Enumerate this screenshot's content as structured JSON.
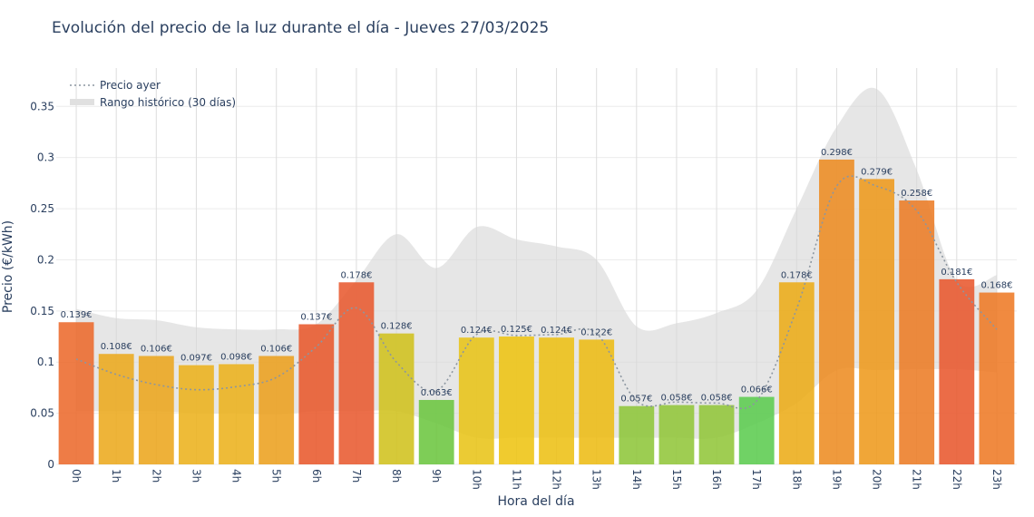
{
  "chart_data": {
    "type": "bar",
    "title": "Evolución del precio de la luz durante el día - Jueves 27/03/2025",
    "xlabel": "Hora del día",
    "ylabel": "Precio (€/kWh)",
    "ylim": [
      0,
      0.39
    ],
    "yticks": [
      0,
      0.05,
      0.1,
      0.15,
      0.2,
      0.25,
      0.3,
      0.35
    ],
    "ytick_labels": [
      "0",
      "0.05",
      "0.1",
      "0.15",
      "0.2",
      "0.25",
      "0.3",
      "0.35"
    ],
    "grid": true,
    "categories": [
      "0h",
      "1h",
      "2h",
      "3h",
      "4h",
      "5h",
      "6h",
      "7h",
      "8h",
      "9h",
      "10h",
      "11h",
      "12h",
      "13h",
      "14h",
      "15h",
      "16h",
      "17h",
      "18h",
      "19h",
      "20h",
      "21h",
      "22h",
      "23h"
    ],
    "values": [
      0.139,
      0.108,
      0.106,
      0.097,
      0.098,
      0.106,
      0.137,
      0.178,
      0.128,
      0.063,
      0.124,
      0.125,
      0.124,
      0.122,
      0.057,
      0.058,
      0.058,
      0.066,
      0.178,
      0.298,
      0.279,
      0.258,
      0.181,
      0.168
    ],
    "data_labels": [
      "0.139€",
      "0.108€",
      "0.106€",
      "0.097€",
      "0.098€",
      "0.106€",
      "0.137€",
      "0.178€",
      "0.128€",
      "0.063€",
      "0.124€",
      "0.125€",
      "0.124€",
      "0.122€",
      "0.057€",
      "0.058€",
      "0.058€",
      "0.066€",
      "0.178€",
      "0.298€",
      "0.279€",
      "0.258€",
      "0.181€",
      "0.168€"
    ],
    "bar_colors": [
      "#ec6a2c",
      "#ecaa1e",
      "#eca61e",
      "#ecb21c",
      "#ecb21c",
      "#eca01f",
      "#e8592c",
      "#e85a30",
      "#d0c21e",
      "#6cc640",
      "#e8c418",
      "#eec412",
      "#edc014",
      "#edbc15",
      "#8ec63a",
      "#92c63a",
      "#92c63a",
      "#5ccc50",
      "#ecac18",
      "#ed8c22",
      "#ee9a1c",
      "#ec7c26",
      "#e8582e",
      "#ee7a26"
    ],
    "series": [
      {
        "name": "Precio ayer",
        "style": "dotted",
        "color": "#8c96a0",
        "values": [
          0.103,
          0.088,
          0.078,
          0.073,
          0.076,
          0.085,
          0.115,
          0.153,
          0.1,
          0.072,
          0.127,
          0.126,
          0.127,
          0.128,
          0.062,
          0.061,
          0.06,
          0.062,
          0.152,
          0.272,
          0.272,
          0.248,
          0.178,
          0.132
        ]
      },
      {
        "name": "Rango histórico (30 días)",
        "style": "band",
        "color": "#d6d6d6",
        "upper": [
          0.152,
          0.143,
          0.141,
          0.134,
          0.132,
          0.132,
          0.137,
          0.18,
          0.225,
          0.192,
          0.232,
          0.22,
          0.213,
          0.2,
          0.135,
          0.138,
          0.148,
          0.17,
          0.25,
          0.33,
          0.367,
          0.288,
          0.18,
          0.185
        ],
        "lower": [
          0.052,
          0.052,
          0.052,
          0.05,
          0.05,
          0.049,
          0.052,
          0.052,
          0.052,
          0.04,
          0.026,
          0.026,
          0.026,
          0.026,
          0.026,
          0.026,
          0.026,
          0.04,
          0.06,
          0.092,
          0.092,
          0.093,
          0.093,
          0.09
        ]
      }
    ],
    "legend": {
      "position": "top-left",
      "items": [
        "Precio ayer",
        "Rango histórico (30 días)"
      ]
    }
  }
}
